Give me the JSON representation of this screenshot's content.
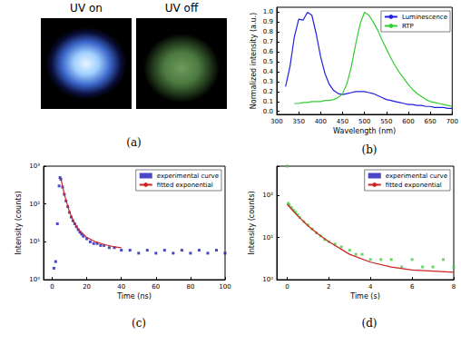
{
  "photos": {
    "labels": [
      "UV on",
      "UV off"
    ],
    "caption": "(a)"
  },
  "chart_data": [
    {
      "type": "line",
      "title": "(b)",
      "x_label": "Wavelength (nm)",
      "y_label": "Normalized intensity (a.u.)",
      "xlim": [
        300,
        700
      ],
      "xticks": [
        300,
        350,
        400,
        450,
        500,
        550,
        600,
        650,
        700
      ],
      "ylim": [
        -0.03,
        1.05
      ],
      "yticks": [
        {
          "value": 0,
          "label": "0.0"
        },
        0.1,
        0.2,
        0.3,
        0.4,
        0.5,
        0.6,
        0.7,
        0.8,
        0.9,
        {
          "value": 1,
          "label": "1.0"
        }
      ],
      "grid": false,
      "legend": "upper right",
      "x": [
        320,
        330,
        340,
        350,
        360,
        370,
        380,
        390,
        400,
        410,
        420,
        430,
        440,
        450,
        460,
        470,
        480,
        490,
        500,
        510,
        520,
        530,
        540,
        550,
        560,
        570,
        580,
        590,
        600,
        610,
        620,
        630,
        640,
        650,
        660,
        670,
        680,
        690,
        700
      ],
      "series": [
        {
          "name": "Luminescence",
          "color": "#2020e0",
          "line_style": "solid",
          "values": [
            0.25,
            0.45,
            0.75,
            0.93,
            0.92,
            1.0,
            0.97,
            0.78,
            0.55,
            0.38,
            0.27,
            0.21,
            0.18,
            0.17,
            0.18,
            0.19,
            0.2,
            0.2,
            0.2,
            0.19,
            0.18,
            0.16,
            0.14,
            0.12,
            0.11,
            0.1,
            0.09,
            0.08,
            0.07,
            0.07,
            0.06,
            0.06,
            0.05,
            0.05,
            0.04,
            0.04,
            0.04,
            0.03,
            0.03
          ]
        },
        {
          "name": "RTP",
          "color": "#33cc33",
          "line_style": "solid",
          "values": [
            null,
            null,
            0.08,
            0.08,
            0.09,
            0.09,
            0.1,
            0.1,
            0.1,
            0.11,
            0.11,
            0.12,
            0.14,
            0.18,
            0.28,
            0.45,
            0.68,
            0.88,
            1.0,
            0.97,
            0.9,
            0.82,
            0.72,
            0.63,
            0.54,
            0.46,
            0.39,
            0.33,
            0.27,
            0.22,
            0.18,
            0.15,
            0.12,
            0.1,
            0.09,
            0.08,
            0.07,
            0.06,
            0.05
          ]
        }
      ]
    },
    {
      "type": "scatter",
      "title": "(c)",
      "x_label": "Time (ns)",
      "y_label": "Intensity (counts)",
      "xlim": [
        -5,
        100
      ],
      "xticks": [
        0,
        20,
        40,
        60,
        80,
        100
      ],
      "ylim": [
        1,
        1000
      ],
      "yticks": [
        {
          "value": 1,
          "label": "10⁰"
        },
        {
          "value": 10,
          "label": "10¹"
        },
        {
          "value": 100,
          "label": "10²"
        },
        {
          "value": 1000,
          "label": "10³"
        }
      ],
      "log": "y",
      "grid": false,
      "legend": "upper right",
      "series": [
        {
          "name": "experimental curve",
          "type": "scatter",
          "marker": "square",
          "color": "#1a1ab8",
          "x": [
            1,
            2,
            3,
            4,
            4.5,
            5,
            6,
            7,
            8,
            9,
            10,
            11,
            12,
            13,
            14,
            15,
            16,
            17,
            18,
            20,
            22,
            24,
            26,
            28,
            30,
            33,
            36,
            40,
            45,
            50,
            55,
            60,
            65,
            70,
            75,
            80,
            85,
            90,
            95,
            100
          ],
          "values": [
            2,
            3,
            30,
            300,
            500,
            450,
            280,
            180,
            120,
            85,
            60,
            45,
            36,
            30,
            25,
            21,
            18,
            16,
            14,
            12,
            10,
            9,
            9,
            8,
            8,
            7,
            7,
            6,
            6,
            5,
            6,
            5,
            6,
            5,
            6,
            5,
            6,
            5,
            6,
            5
          ]
        },
        {
          "name": "fitted exponential",
          "type": "line",
          "line_style": "solid",
          "color": "#cc2222",
          "x": [
            5,
            6,
            7,
            8,
            10,
            12,
            15,
            20,
            25,
            30,
            35,
            40
          ],
          "values": [
            480,
            290,
            185,
            125,
            62,
            38,
            22,
            13,
            10,
            8.5,
            7.5,
            7
          ]
        }
      ]
    },
    {
      "type": "scatter",
      "title": "(d)",
      "x_label": "Time (s)",
      "y_label": "Intensity (counts)",
      "xlim": [
        -0.5,
        8
      ],
      "xticks": [
        0,
        2,
        4,
        6,
        8
      ],
      "ylim": [
        1,
        500
      ],
      "yticks": [
        {
          "value": 1,
          "label": "10⁰"
        },
        {
          "value": 10,
          "label": "10¹"
        },
        {
          "value": 100,
          "label": "10²"
        }
      ],
      "log": "y",
      "grid": false,
      "legend": "upper right",
      "series": [
        {
          "name": "experimental curve",
          "type": "scatter",
          "marker": "square",
          "color": "#44cc44",
          "x": [
            0,
            0.05,
            0.1,
            0.2,
            0.3,
            0.4,
            0.5,
            0.6,
            0.8,
            1,
            1.2,
            1.4,
            1.6,
            1.8,
            2,
            2.3,
            2.6,
            3,
            3.3,
            3.6,
            4,
            4.5,
            5,
            5.5,
            6,
            6.5,
            7,
            7.5,
            8
          ],
          "values": [
            500,
            65,
            60,
            52,
            45,
            40,
            35,
            30,
            24,
            20,
            16,
            13,
            11,
            9,
            8,
            7,
            6,
            5,
            4,
            4,
            3,
            3,
            3,
            2,
            3,
            2,
            2,
            3,
            2
          ]
        },
        {
          "name": "fitted exponential",
          "type": "line",
          "line_style": "solid",
          "color": "#cc2222",
          "x": [
            0,
            0.5,
            1,
            1.5,
            2,
            3,
            4,
            5,
            6,
            7,
            8
          ],
          "values": [
            62,
            33,
            19,
            12,
            8,
            4,
            2.6,
            2,
            1.7,
            1.6,
            1.5
          ]
        }
      ]
    }
  ]
}
